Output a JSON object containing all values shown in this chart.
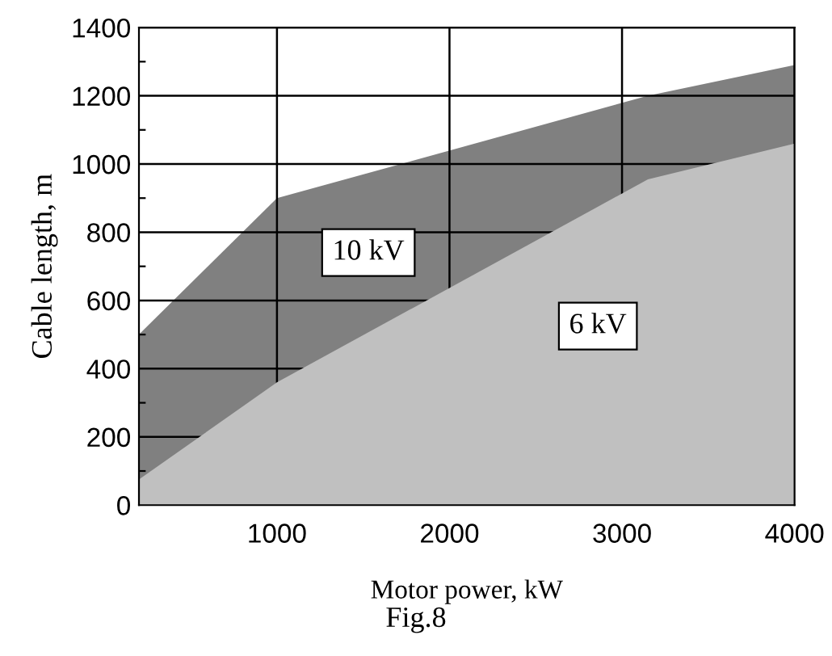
{
  "chart_data": {
    "type": "area",
    "xlabel": "Motor power, kW",
    "ylabel": "Cable length, m",
    "annotations": [
      "Fig.8"
    ],
    "x": [
      200,
      1000,
      3150,
      4000
    ],
    "series": [
      {
        "name": "6 kV",
        "color": "#c0c0c0",
        "values": [
          75,
          360,
          955,
          1060
        ]
      },
      {
        "name": "10 kV",
        "color": "#808080",
        "values": [
          500,
          900,
          1200,
          1290
        ]
      }
    ],
    "xlim": [
      200,
      4000
    ],
    "xticks": [
      1000,
      2000,
      3000,
      4000
    ],
    "ylim": [
      0,
      1400
    ],
    "yticks": [
      0,
      {
        "value": 100,
        "label": null
      },
      200,
      {
        "value": 300,
        "label": null
      },
      400,
      {
        "value": 500,
        "label": null
      },
      600,
      {
        "value": 700,
        "label": null
      },
      800,
      {
        "value": 900,
        "label": null
      },
      1000,
      {
        "value": 1100,
        "label": null
      },
      1200,
      {
        "value": 1300,
        "label": null
      },
      1400
    ],
    "grid": true,
    "legend": false
  }
}
